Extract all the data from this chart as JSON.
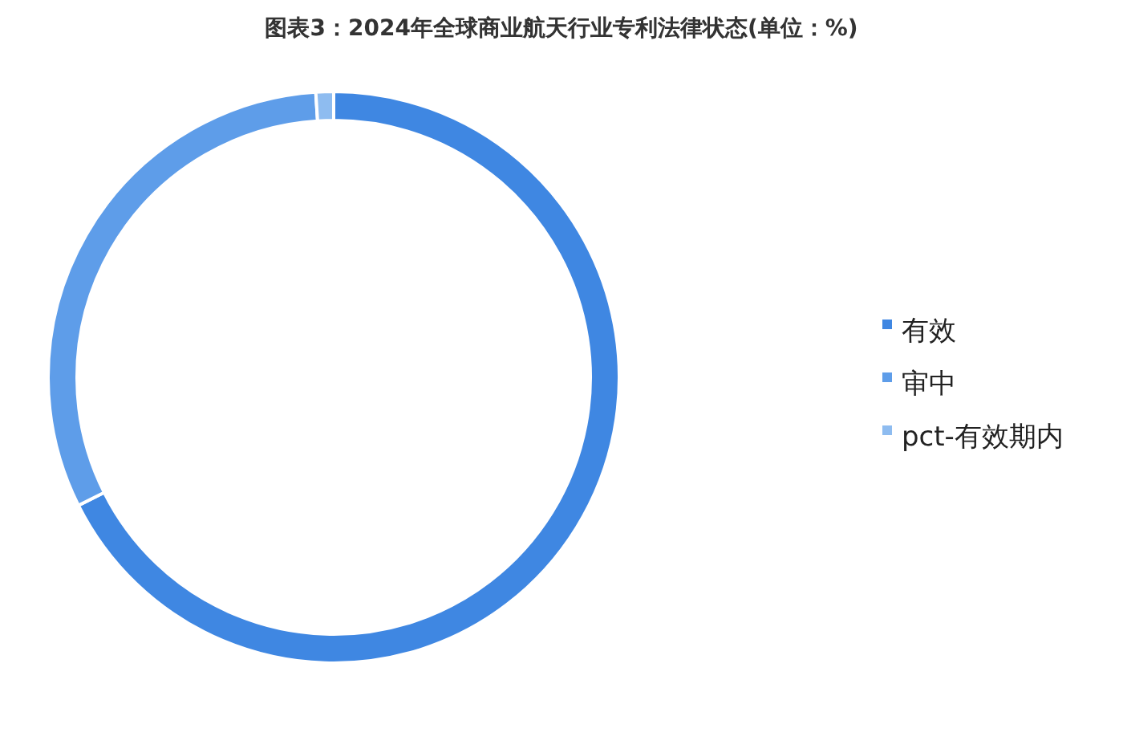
{
  "chart_data": {
    "type": "donut",
    "title": "图表3：2024年全球商业航天行业专利法律状态(单位：%)",
    "categories": [
      "有效",
      "审中",
      "pct-有效期内"
    ],
    "values": [
      67.6,
      31.4,
      1.0
    ],
    "colors": [
      "#3f87e2",
      "#5e9de9",
      "#8ebcf0"
    ],
    "legend": "right"
  }
}
